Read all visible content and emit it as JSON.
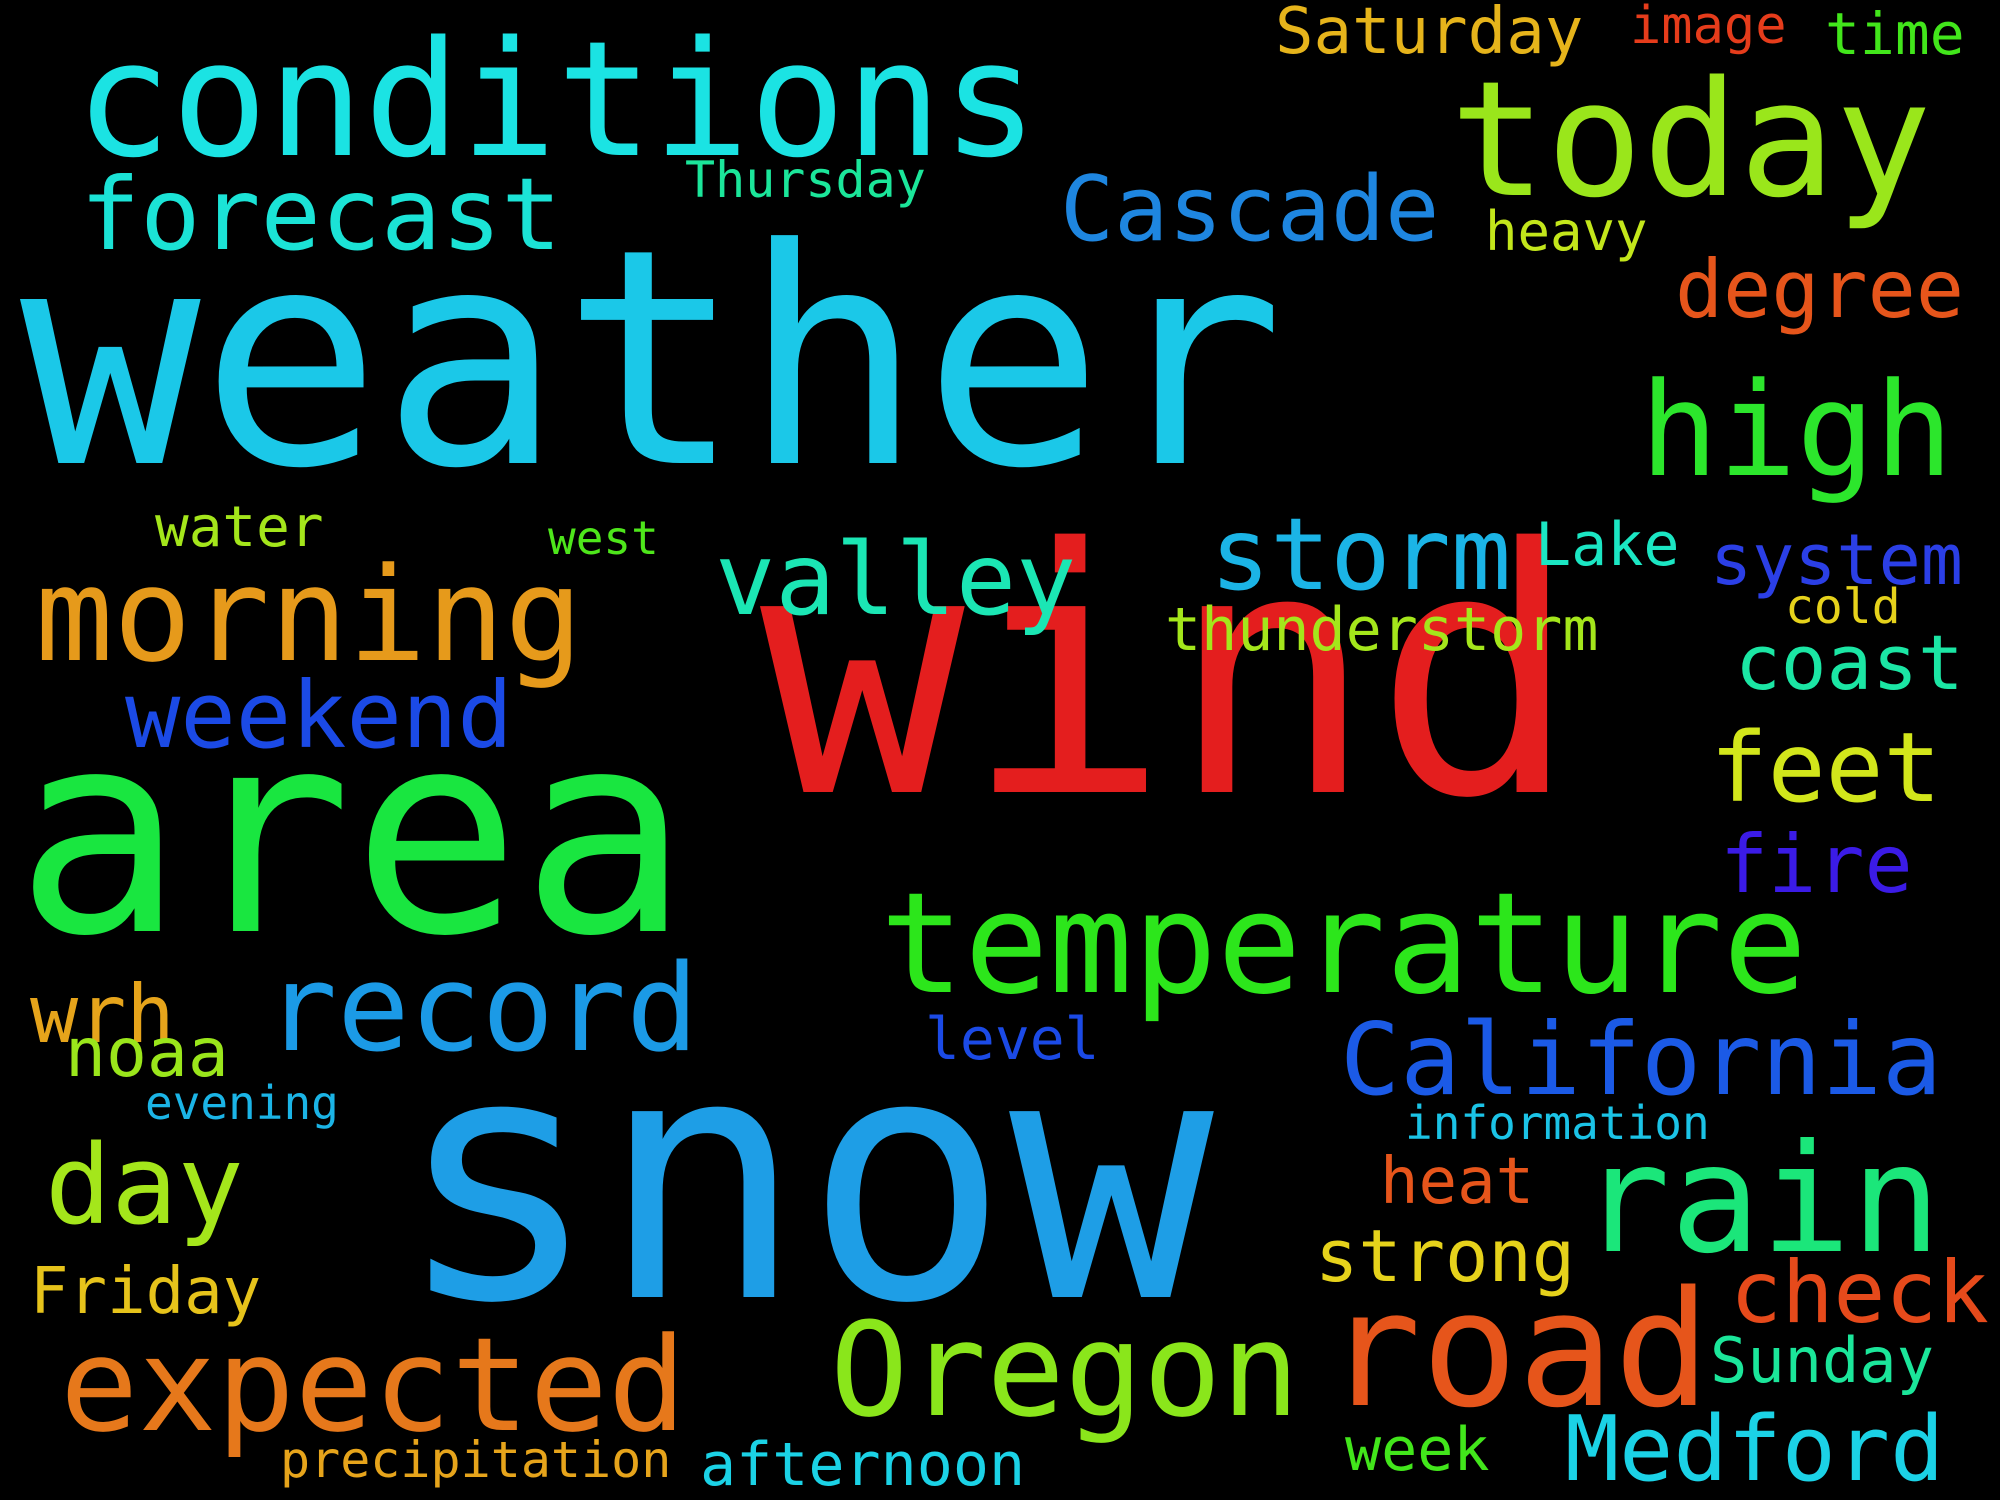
{
  "background": "#000000",
  "words": [
    {
      "text": "weather",
      "color": "#1BC8E8"
    },
    {
      "text": "wind",
      "color": "#E41E1E"
    },
    {
      "text": "snow",
      "color": "#1E9EE6"
    },
    {
      "text": "area",
      "color": "#19E640"
    },
    {
      "text": "conditions",
      "color": "#1BE3E3"
    },
    {
      "text": "today",
      "color": "#9AE61B"
    },
    {
      "text": "forecast",
      "color": "#1BE3D6"
    },
    {
      "text": "Saturday",
      "color": "#E6B41B"
    },
    {
      "text": "image",
      "color": "#E63C1B"
    },
    {
      "text": "time",
      "color": "#42E61B"
    },
    {
      "text": "Thursday",
      "color": "#1BE69A"
    },
    {
      "text": "Cascade",
      "color": "#1E86E0"
    },
    {
      "text": "heavy",
      "color": "#C3E61B"
    },
    {
      "text": "degree",
      "color": "#E6551B"
    },
    {
      "text": "high",
      "color": "#2CE62C"
    },
    {
      "text": "water",
      "color": "#A4E61B"
    },
    {
      "text": "west",
      "color": "#4EE61B"
    },
    {
      "text": "morning",
      "color": "#E69A1B"
    },
    {
      "text": "valley",
      "color": "#1BE6B4"
    },
    {
      "text": "storm",
      "color": "#1BB4E6"
    },
    {
      "text": "Lake",
      "color": "#1BE6C3"
    },
    {
      "text": "system",
      "color": "#2B3FE6"
    },
    {
      "text": "cold",
      "color": "#E6D21B"
    },
    {
      "text": "thunderstorm",
      "color": "#A4E61B"
    },
    {
      "text": "coast",
      "color": "#1BE6A4"
    },
    {
      "text": "weekend",
      "color": "#1B4AE6"
    },
    {
      "text": "feet",
      "color": "#D2E61B"
    },
    {
      "text": "fire",
      "color": "#3B1BE6"
    },
    {
      "text": "temperature",
      "color": "#2CE61B"
    },
    {
      "text": "wrh",
      "color": "#E6A41B"
    },
    {
      "text": "record",
      "color": "#1B9AE6"
    },
    {
      "text": "California",
      "color": "#1B5AE6"
    },
    {
      "text": "noaa",
      "color": "#9AE61B"
    },
    {
      "text": "level",
      "color": "#1B4AE6"
    },
    {
      "text": "evening",
      "color": "#1BB4E6"
    },
    {
      "text": "information",
      "color": "#1BC3E6"
    },
    {
      "text": "day",
      "color": "#A4E61B"
    },
    {
      "text": "rain",
      "color": "#1BE67A"
    },
    {
      "text": "heat",
      "color": "#E6551B"
    },
    {
      "text": "strong",
      "color": "#E6D21B"
    },
    {
      "text": "Friday",
      "color": "#E6C31B"
    },
    {
      "text": "check",
      "color": "#E64A1B"
    },
    {
      "text": "expected",
      "color": "#E6781B"
    },
    {
      "text": "Oregon",
      "color": "#8AE61B"
    },
    {
      "text": "road",
      "color": "#E6551B"
    },
    {
      "text": "Sunday",
      "color": "#1BE69A"
    },
    {
      "text": "precipitation",
      "color": "#E6A41B"
    },
    {
      "text": "afternoon",
      "color": "#1BD2E6"
    },
    {
      "text": "week",
      "color": "#42E61B"
    },
    {
      "text": "Medford",
      "color": "#1BD2E6"
    }
  ]
}
